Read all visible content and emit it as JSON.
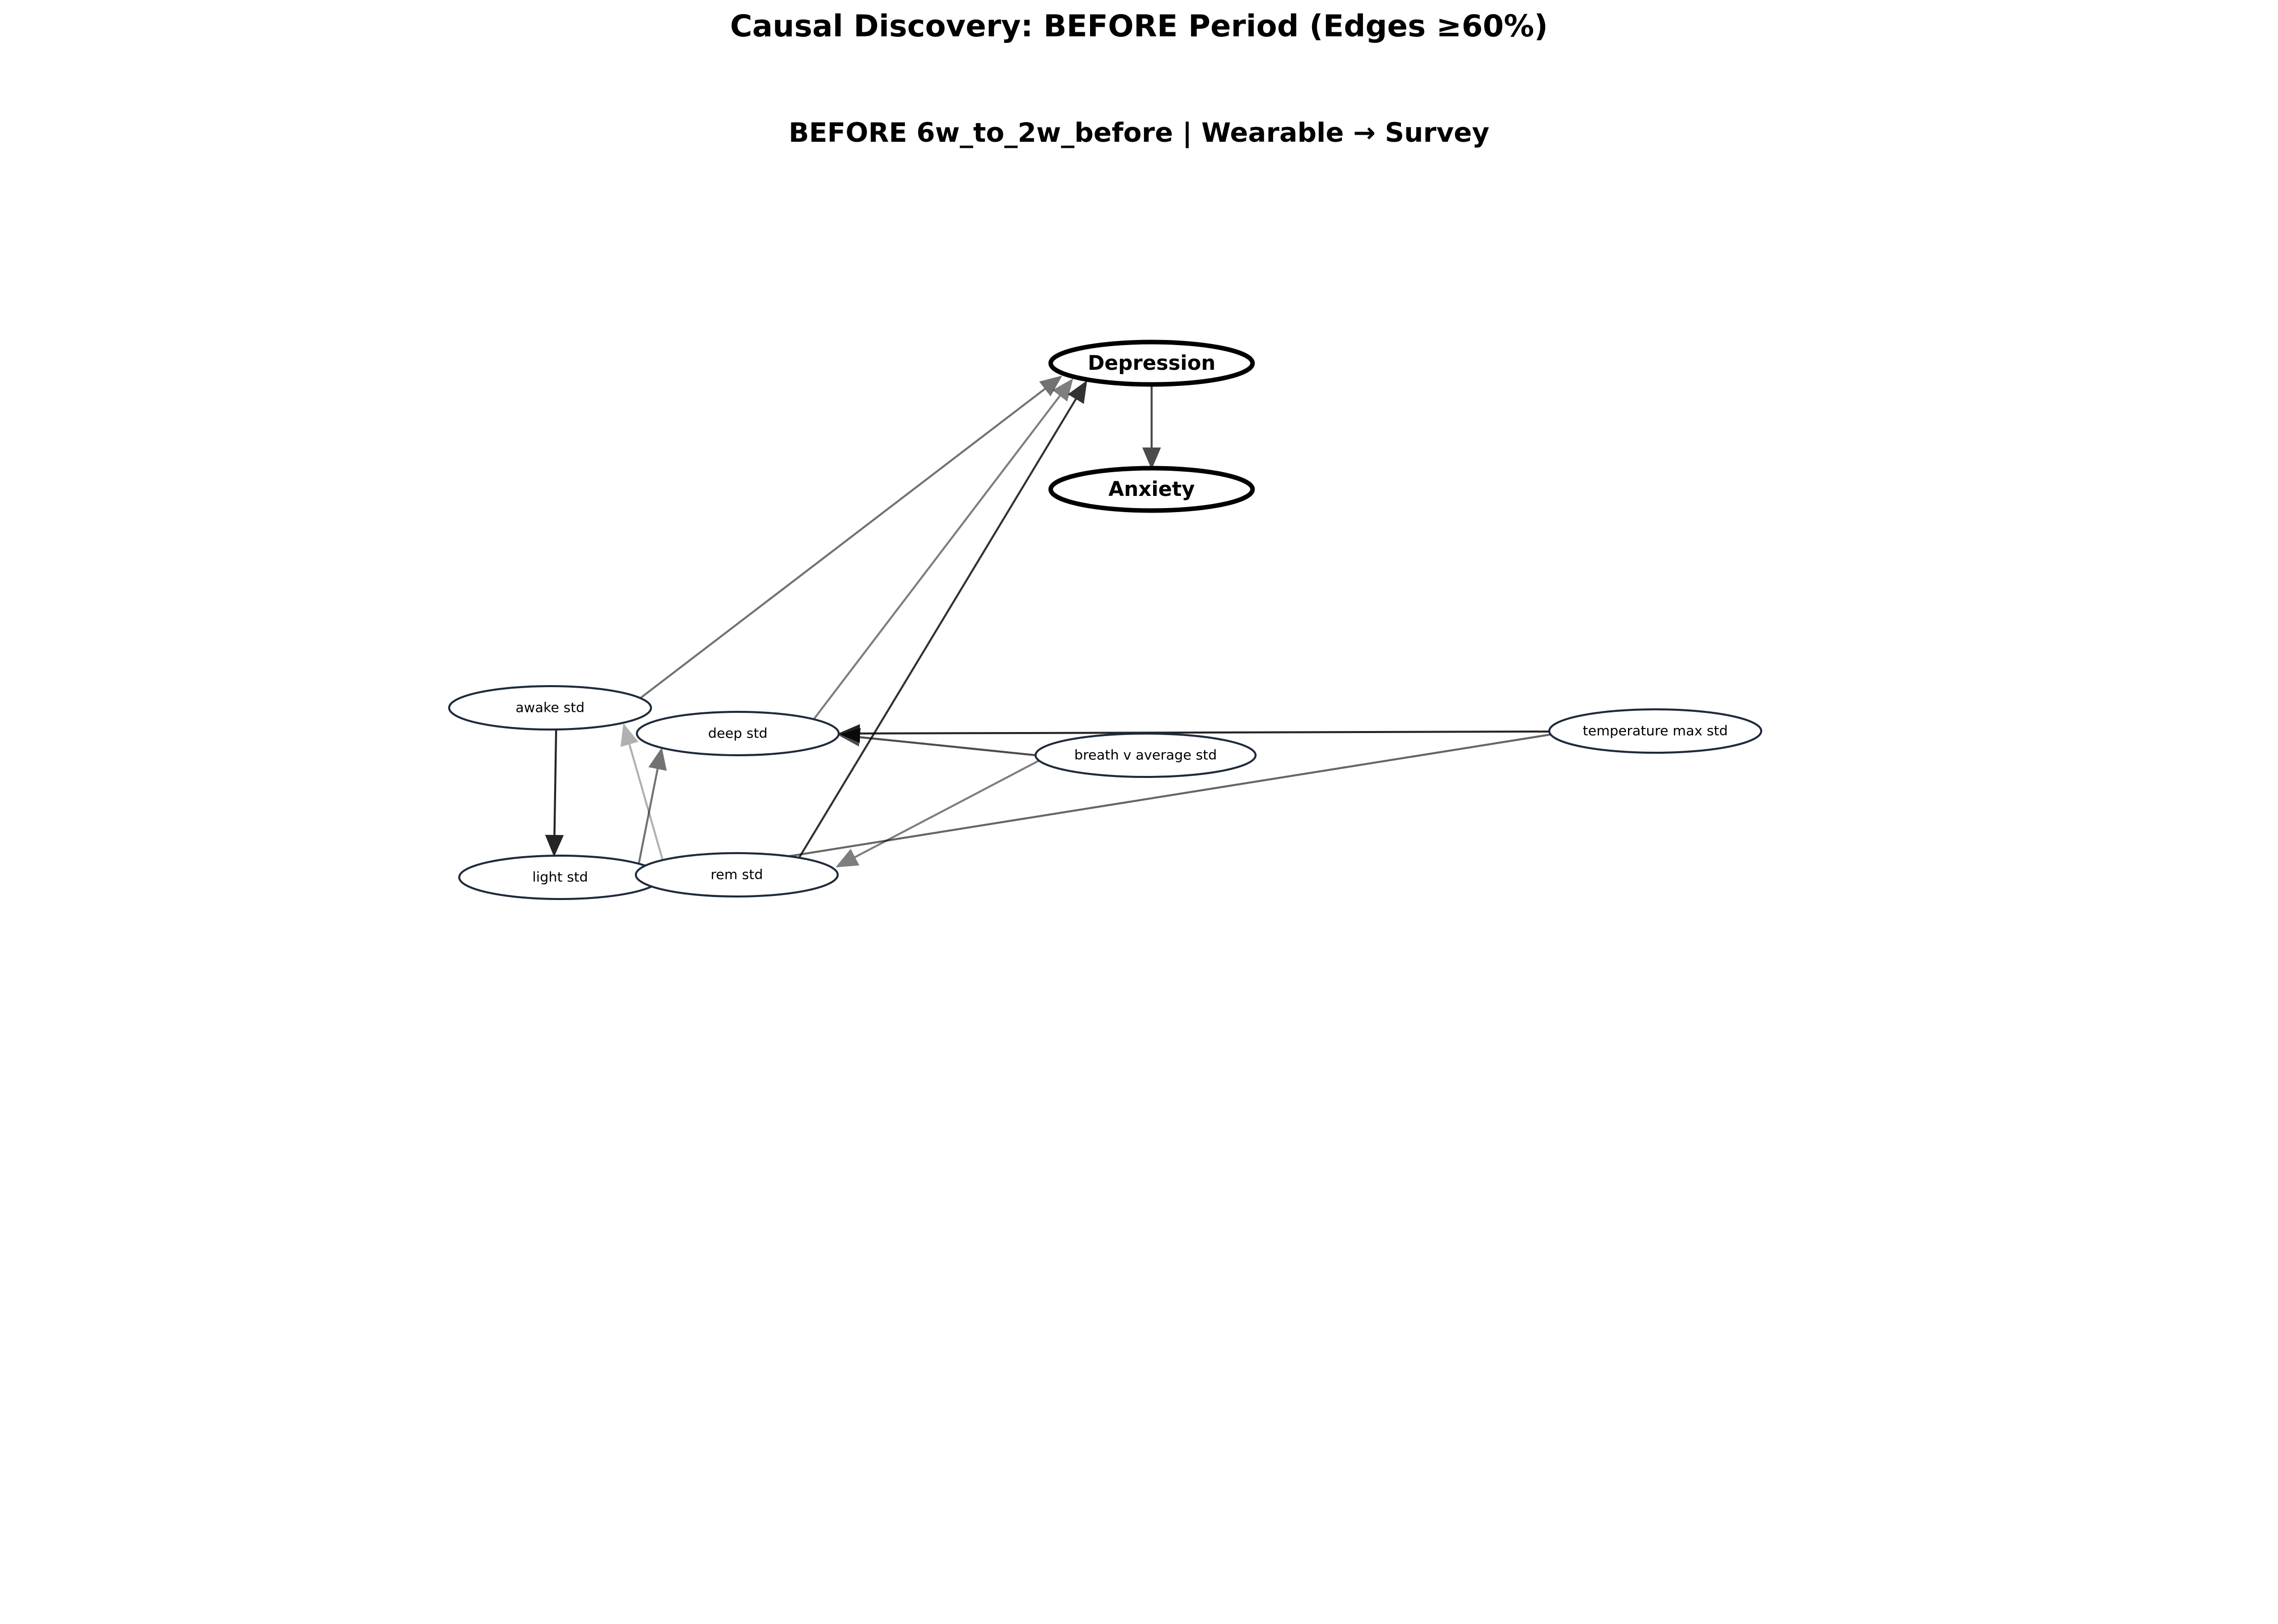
{
  "figure": {
    "title": "Causal Discovery: BEFORE Period (Edges ≥60%)",
    "subtitle": "BEFORE 6w_to_2w_before | Wearable → Survey"
  },
  "graph": {
    "nodes": [
      {
        "id": "depression",
        "label": "Depression",
        "kind": "survey"
      },
      {
        "id": "anxiety",
        "label": "Anxiety",
        "kind": "survey"
      },
      {
        "id": "awake_std",
        "label": "awake std",
        "kind": "wearable"
      },
      {
        "id": "deep_std",
        "label": "deep std",
        "kind": "wearable"
      },
      {
        "id": "breath_v_average_std",
        "label": "breath v average std",
        "kind": "wearable"
      },
      {
        "id": "temperature_max_std",
        "label": "temperature max std",
        "kind": "wearable"
      },
      {
        "id": "light_std",
        "label": "light std",
        "kind": "wearable"
      },
      {
        "id": "rem_std",
        "label": "rem std",
        "kind": "wearable"
      }
    ],
    "edges": [
      {
        "from": "depression",
        "to": "anxiety",
        "strength": 0.7
      },
      {
        "from": "awake_std",
        "to": "depression",
        "strength": 0.55
      },
      {
        "from": "deep_std",
        "to": "depression",
        "strength": 0.5
      },
      {
        "from": "rem_std",
        "to": "depression",
        "strength": 0.8
      },
      {
        "from": "temperature_max_std",
        "to": "deep_std",
        "strength": 0.85
      },
      {
        "from": "breath_v_average_std",
        "to": "deep_std",
        "strength": 0.7
      },
      {
        "from": "breath_v_average_std",
        "to": "rem_std",
        "strength": 0.5
      },
      {
        "from": "temperature_max_std",
        "to": "rem_std",
        "strength": 0.6
      },
      {
        "from": "awake_std",
        "to": "light_std",
        "strength": 0.85
      },
      {
        "from": "light_std",
        "to": "deep_std",
        "strength": 0.55
      },
      {
        "from": "rem_std",
        "to": "awake_std",
        "strength": 0.3
      }
    ]
  },
  "colors": {
    "node_border_wearable": "#1e2a3c",
    "node_border_survey": "#000000",
    "node_fill": "#ffffff",
    "edge": "#000000"
  }
}
